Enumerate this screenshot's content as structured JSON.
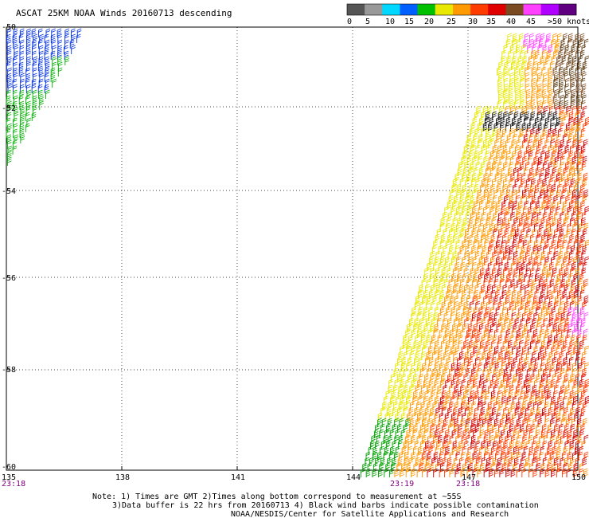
{
  "title": "ASCAT 25KM NOAA Winds 20160713 descending",
  "legend": {
    "colors": [
      "#555555",
      "#999999",
      "#00d8ff",
      "#0060ff",
      "#00c000",
      "#e8e800",
      "#ff9a00",
      "#ff3c00",
      "#e00000",
      "#7a4a20",
      "#ff40ff",
      "#b000ff",
      "#600080"
    ],
    "labels": [
      "0",
      "5",
      "10",
      "15",
      "20",
      "25",
      "30",
      "35",
      "40",
      "45",
      ">50 knots"
    ]
  },
  "map": {
    "lon_ticks": [
      "135",
      "138",
      "141",
      "144",
      "147",
      "150"
    ],
    "lat_ticks": [
      "-50",
      "-52",
      "-54",
      "-56",
      "-58",
      "-60"
    ],
    "lon_range": [
      135,
      150
    ],
    "lat_range": [
      -60,
      -50
    ]
  },
  "pass_times": [
    "23:18",
    "23:19",
    "23:18"
  ],
  "notes": {
    "line1": "Note: 1) Times are GMT 2)Times along bottom correspond to measurement at ~55S",
    "line2": "3)Data buffer is 22 hrs from 20160713 4) Black wind barbs indicate possible contamination",
    "line3": "NOAA/NESDIS/Center for Satellite Applications and Research"
  }
}
